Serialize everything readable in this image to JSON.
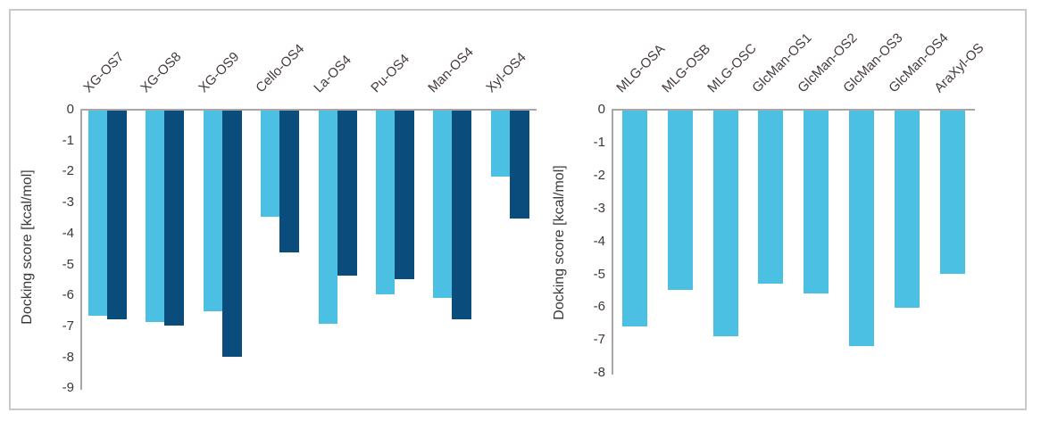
{
  "chart_data": [
    {
      "type": "bar",
      "title": "",
      "xlabel": "",
      "ylabel": "Docking score [kcal/mol]",
      "categories": [
        "XG-OS7",
        "XG-OS8",
        "XG-OS9",
        "Cello-OS4",
        "La-OS4",
        "Pu-OS4",
        "Man-OS4",
        "Xyl-OS4"
      ],
      "series": [
        {
          "name": "light-blue-series",
          "color": "#4bc0e2",
          "values": [
            -6.7,
            -6.9,
            -6.55,
            -3.5,
            -6.95,
            -6.0,
            -6.1,
            -2.2
          ]
        },
        {
          "name": "dark-blue-series",
          "color": "#0a4d7d",
          "values": [
            -6.8,
            -7.0,
            -8.0,
            -4.65,
            -5.4,
            -5.5,
            -6.8,
            -3.55
          ]
        }
      ],
      "ylim": [
        -9,
        0
      ],
      "yticks": [
        "0",
        "-1",
        "-2",
        "-3",
        "-4",
        "-5",
        "-6",
        "-7",
        "-8",
        "-9"
      ],
      "grid": false,
      "legend": "none"
    },
    {
      "type": "bar",
      "title": "",
      "xlabel": "",
      "ylabel": "Docking score [kcal/mol]",
      "categories": [
        "MLG-OSA",
        "MLG-OSB",
        "MLG-OSC",
        "GlcMan-OS1",
        "GlcMan-OS2",
        "GlcMan-OS3",
        "GlcMan-OS4",
        "AraXyl-OS"
      ],
      "series": [
        {
          "name": "light-blue-series",
          "color": "#4bc0e2",
          "values": [
            -6.6,
            -5.5,
            -6.9,
            -5.3,
            -5.6,
            -7.2,
            -6.05,
            -5.0
          ]
        }
      ],
      "ylim": [
        -8,
        0
      ],
      "yticks": [
        "0",
        "-1",
        "-2",
        "-3",
        "-4",
        "-5",
        "-6",
        "-7",
        "-8"
      ],
      "grid": false,
      "legend": "none"
    }
  ],
  "colors": {
    "light_blue": "#4bc0e2",
    "dark_blue": "#0a4d7d",
    "axis_gray": "#aba5a5",
    "text": "#3e3737",
    "frame_border": "#cbc8c8"
  }
}
